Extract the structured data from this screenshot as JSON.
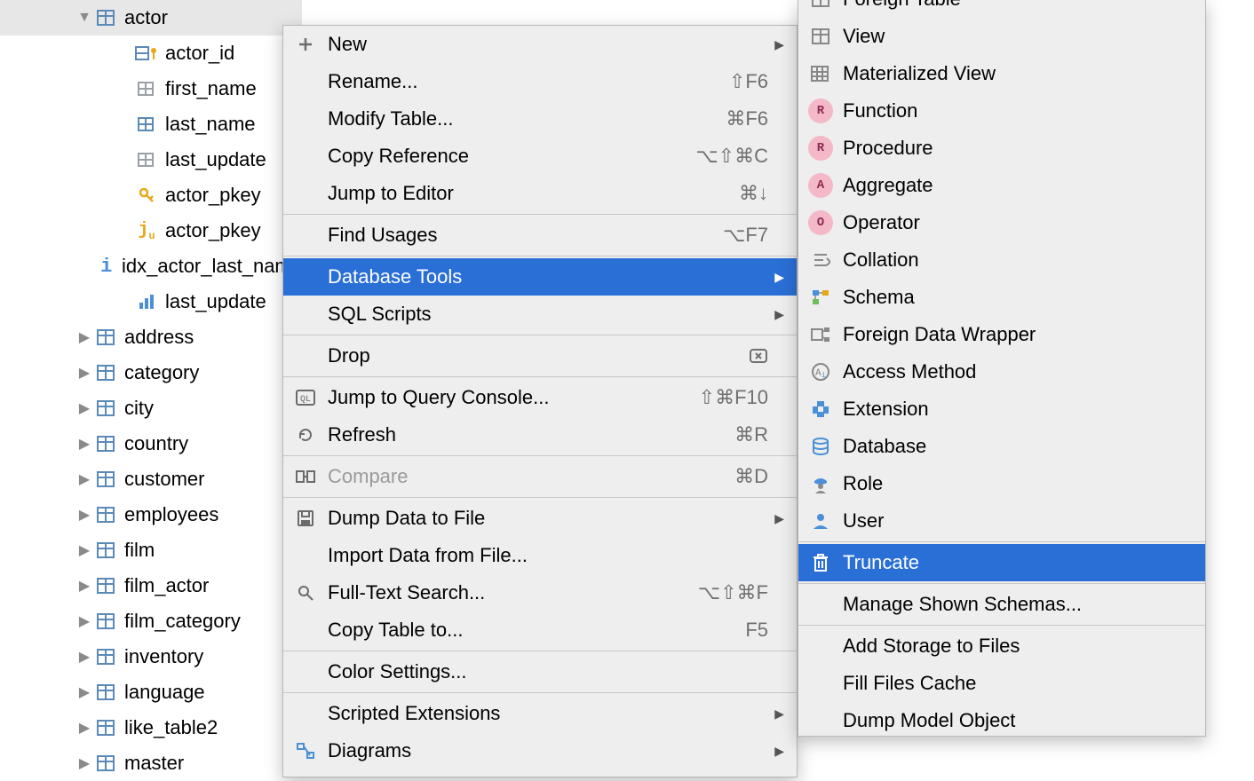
{
  "colors": {
    "selection_blue": "#2a6fd6",
    "menu_bg": "#eeeeee",
    "menu_border": "#b8b8b8",
    "tree_selected_bg": "#e7e7e7",
    "text": "#000000",
    "muted": "#707070",
    "badge_pink_bg": "#f4b8c8",
    "badge_pink_fg": "#8a2b4f"
  },
  "tree": {
    "root": "actor",
    "columns": [
      {
        "icon": "pk-col",
        "label": "actor_id"
      },
      {
        "icon": "col",
        "label": "first_name"
      },
      {
        "icon": "col-blue",
        "label": "last_name"
      },
      {
        "icon": "col",
        "label": "last_update"
      },
      {
        "icon": "pk",
        "label": "actor_pkey"
      },
      {
        "icon": "idx-j",
        "label": "actor_pkey"
      },
      {
        "icon": "idx-i",
        "label": "idx_actor_last_name"
      },
      {
        "icon": "stats",
        "label": "last_update"
      }
    ],
    "tables": [
      "address",
      "category",
      "city",
      "country",
      "customer",
      "employees",
      "film",
      "film_actor",
      "film_category",
      "inventory",
      "language",
      "like_table2",
      "master"
    ]
  },
  "menu1": [
    {
      "icon": "plus",
      "label": "New",
      "submenu": true
    },
    {
      "label": "Rename...",
      "shortcut": "⇧F6"
    },
    {
      "label": "Modify Table...",
      "shortcut": "⌘F6"
    },
    {
      "label": "Copy Reference",
      "shortcut": "⌥⇧⌘C"
    },
    {
      "label": "Jump to Editor",
      "shortcut": "⌘↓"
    },
    {
      "sep": true
    },
    {
      "label": "Find Usages",
      "shortcut": "⌥F7"
    },
    {
      "sep": true
    },
    {
      "label": "Database Tools",
      "submenu": true,
      "selected": true
    },
    {
      "label": "SQL Scripts",
      "submenu": true
    },
    {
      "sep": true
    },
    {
      "label": "Drop",
      "shortcut_icon": "delete"
    },
    {
      "sep": true
    },
    {
      "icon": "console",
      "label": "Jump to Query Console...",
      "shortcut": "⇧⌘F10"
    },
    {
      "icon": "refresh",
      "label": "Refresh",
      "shortcut": "⌘R"
    },
    {
      "sep": true
    },
    {
      "icon": "compare",
      "label": "Compare",
      "shortcut": "⌘D",
      "disabled": true
    },
    {
      "sep": true
    },
    {
      "icon": "disk",
      "label": "Dump Data to File",
      "submenu": true
    },
    {
      "label": "Import Data from File..."
    },
    {
      "icon": "search",
      "label": "Full-Text Search...",
      "shortcut": "⌥⇧⌘F"
    },
    {
      "label": "Copy Table to...",
      "shortcut": "F5"
    },
    {
      "sep": true
    },
    {
      "label": "Color Settings..."
    },
    {
      "sep": true
    },
    {
      "label": "Scripted Extensions",
      "submenu": true
    },
    {
      "icon": "diagram",
      "label": "Diagrams",
      "submenu": true
    }
  ],
  "menu2": [
    {
      "icon": "table-plain",
      "label": "Foreign Table",
      "cut": true
    },
    {
      "icon": "table-plain",
      "label": "View"
    },
    {
      "icon": "table-mat",
      "label": "Materialized View"
    },
    {
      "badge": "R",
      "label": "Function"
    },
    {
      "badge": "R",
      "label": "Procedure"
    },
    {
      "badge": "A",
      "label": "Aggregate"
    },
    {
      "badge": "O",
      "label": "Operator"
    },
    {
      "icon": "collation",
      "label": "Collation"
    },
    {
      "icon": "schema",
      "label": "Schema"
    },
    {
      "icon": "fdw",
      "label": "Foreign Data Wrapper"
    },
    {
      "icon": "access-method",
      "label": "Access Method"
    },
    {
      "icon": "extension",
      "label": "Extension"
    },
    {
      "icon": "database",
      "label": "Database"
    },
    {
      "icon": "role",
      "label": "Role"
    },
    {
      "icon": "user",
      "label": "User"
    },
    {
      "sep": true
    },
    {
      "icon": "trash",
      "label": "Truncate",
      "selected": true
    },
    {
      "sep": true
    },
    {
      "label": "Manage Shown Schemas..."
    },
    {
      "sep": true
    },
    {
      "label": "Add Storage to Files"
    },
    {
      "label": "Fill Files Cache"
    },
    {
      "label": "Dump Model Object"
    }
  ]
}
